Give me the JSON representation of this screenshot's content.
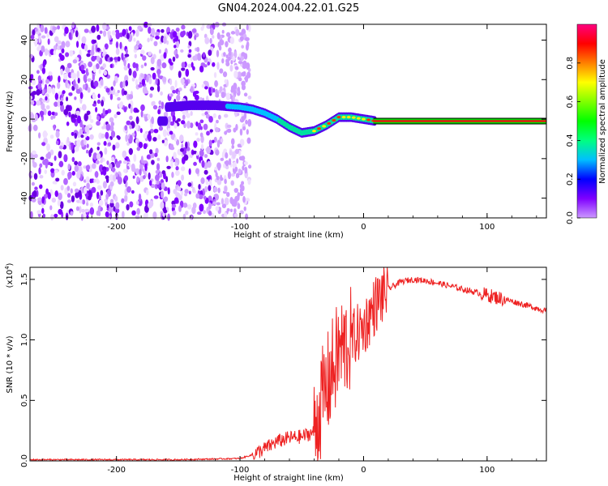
{
  "title": "GN04.2024.004.22.01.G25",
  "chart_data": [
    {
      "type": "heatmap",
      "xlabel": "Height of straight line (km)",
      "ylabel": "Frequency (Hz)",
      "xlim": [
        -270,
        148
      ],
      "ylim": [
        -50,
        48
      ],
      "xticks": [
        -200,
        -100,
        0,
        100
      ],
      "yticks": [
        -40,
        -20,
        0,
        20,
        40
      ],
      "colorbar": {
        "label": "Normalized spectral amplitude",
        "range": [
          0,
          1
        ],
        "ticks": [
          "0.0",
          "0.2",
          "0.4",
          "0.6",
          "0.8"
        ],
        "colors": [
          "#cc99ff",
          "#7f00ff",
          "#0000ff",
          "#00bfff",
          "#00ff80",
          "#00ff00",
          "#80ff00",
          "#ffff00",
          "#ff8000",
          "#ff0000",
          "#ff0080"
        ]
      },
      "signal_track": {
        "x": [
          -160,
          -140,
          -120,
          -100,
          -90,
          -80,
          -70,
          -60,
          -50,
          -40,
          -30,
          -20,
          -10,
          0,
          10,
          148
        ],
        "y": [
          6,
          7,
          7,
          6,
          5,
          3,
          0,
          -4,
          -7,
          -6,
          -3,
          1,
          1,
          0,
          -1,
          -1
        ]
      },
      "noise_region": {
        "x": [
          -270,
          -100
        ]
      }
    },
    {
      "type": "line",
      "xlabel": "Height of straight line (km)",
      "ylabel": "SNR (10 * v/v)",
      "yscale_label": "(x10",
      "yscale_exp": "4",
      "xlim": [
        -270,
        148
      ],
      "ylim": [
        0,
        1.6
      ],
      "xticks": [
        -200,
        -100,
        0,
        100
      ],
      "yticks": [
        0.0,
        0.5,
        1.0,
        1.5
      ],
      "ytick_labels": [
        "0.0",
        "0.5",
        "1.0",
        "1.5"
      ],
      "color": "#ee2222",
      "x": [
        -270,
        -200,
        -150,
        -100,
        -90,
        -80,
        -70,
        -60,
        -50,
        -40,
        -35,
        -30,
        -25,
        -20,
        -15,
        -10,
        -5,
        0,
        10,
        20,
        30,
        40,
        50,
        60,
        80,
        100,
        120,
        148
      ],
      "y": [
        0.01,
        0.01,
        0.01,
        0.02,
        0.05,
        0.1,
        0.16,
        0.19,
        0.2,
        0.24,
        0.45,
        0.6,
        0.75,
        0.9,
        0.95,
        1.0,
        1.05,
        1.1,
        1.3,
        1.42,
        1.48,
        1.5,
        1.49,
        1.47,
        1.42,
        1.37,
        1.32,
        1.24
      ]
    }
  ]
}
